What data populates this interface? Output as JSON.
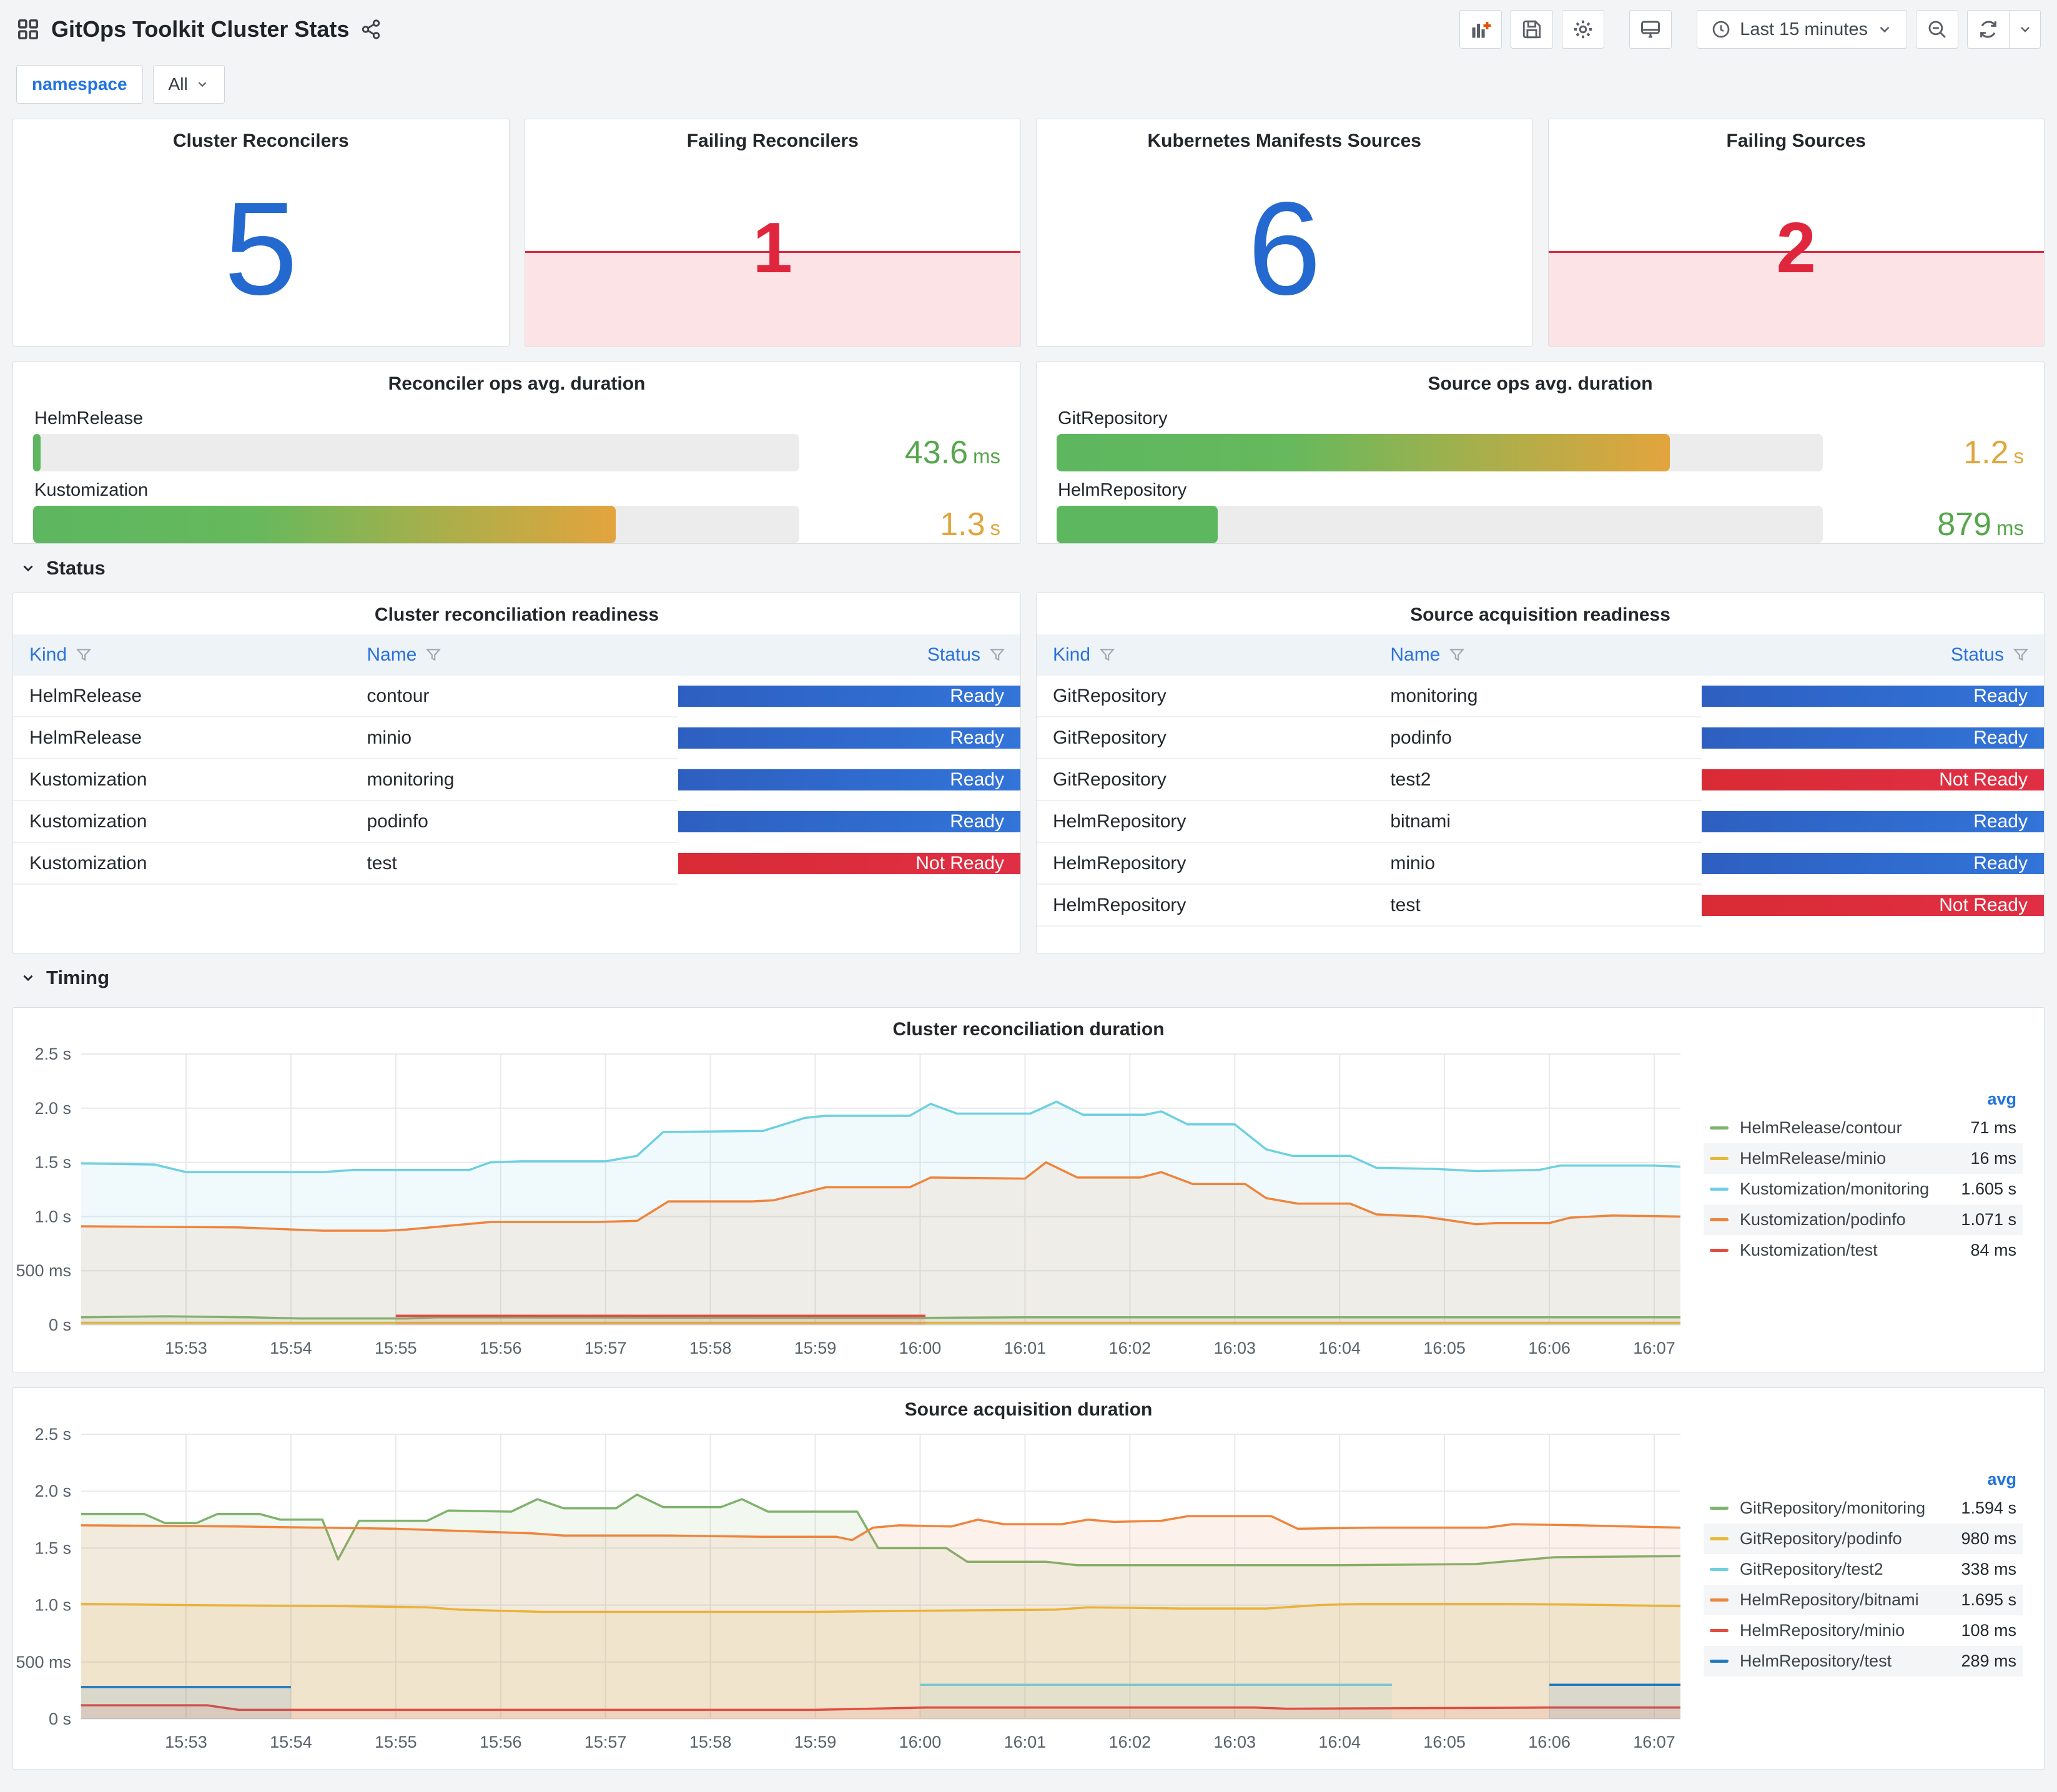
{
  "header": {
    "title": "GitOps Toolkit Cluster Stats",
    "toolbar": {
      "time_range": "Last 15 minutes",
      "accent_plus_color": "#e55400"
    }
  },
  "variables": {
    "label": "namespace",
    "value": "All"
  },
  "colors": {
    "stat_blue": "#2469cf",
    "stat_red": "#e0263c",
    "stat_red_fill": "rgba(224,38,60,0.13)",
    "ready_blue": "#3274d9",
    "notready_red": "#e02f44",
    "value_green": "#56a64b",
    "value_orange": "#e0a63c"
  },
  "stats": [
    {
      "title": "Cluster Reconcilers",
      "value": "5",
      "alert": false
    },
    {
      "title": "Failing Reconcilers",
      "value": "1",
      "alert": true
    },
    {
      "title": "Kubernetes Manifests Sources",
      "value": "6",
      "alert": false
    },
    {
      "title": "Failing Sources",
      "value": "2",
      "alert": true
    }
  ],
  "gauges": [
    {
      "title": "Reconciler ops avg. duration",
      "rows": [
        {
          "label": "HelmRelease",
          "value": "43.6",
          "unit": "ms",
          "pct": 1,
          "fill": "green",
          "value_color": "#56a64b"
        },
        {
          "label": "Kustomization",
          "value": "1.3",
          "unit": "s",
          "pct": 76,
          "fill": "gradient",
          "value_color": "#e0a63c"
        }
      ]
    },
    {
      "title": "Source ops avg. duration",
      "rows": [
        {
          "label": "GitRepository",
          "value": "1.2",
          "unit": "s",
          "pct": 80,
          "fill": "gradient",
          "value_color": "#e0a63c"
        },
        {
          "label": "HelmRepository",
          "value": "879",
          "unit": "ms",
          "pct": 21,
          "fill": "green",
          "value_color": "#56a64b"
        }
      ]
    }
  ],
  "sections": {
    "status": "Status",
    "timing": "Timing"
  },
  "tables": [
    {
      "title": "Cluster reconciliation readiness",
      "columns": [
        "Kind",
        "Name",
        "Status"
      ],
      "rows": [
        [
          "HelmRelease",
          "contour",
          "Ready"
        ],
        [
          "HelmRelease",
          "minio",
          "Ready"
        ],
        [
          "Kustomization",
          "monitoring",
          "Ready"
        ],
        [
          "Kustomization",
          "podinfo",
          "Ready"
        ],
        [
          "Kustomization",
          "test",
          "Not Ready"
        ]
      ]
    },
    {
      "title": "Source acquisition readiness",
      "columns": [
        "Kind",
        "Name",
        "Status"
      ],
      "rows": [
        [
          "GitRepository",
          "monitoring",
          "Ready"
        ],
        [
          "GitRepository",
          "podinfo",
          "Ready"
        ],
        [
          "GitRepository",
          "test2",
          "Not Ready"
        ],
        [
          "HelmRepository",
          "bitnami",
          "Ready"
        ],
        [
          "HelmRepository",
          "minio",
          "Ready"
        ],
        [
          "HelmRepository",
          "test",
          "Not Ready"
        ]
      ]
    }
  ],
  "chart_data": [
    {
      "type": "area",
      "title": "Cluster reconciliation duration",
      "legend_header": "avg",
      "legend_position": "right",
      "grid": true,
      "ylim": [
        0,
        2.5
      ],
      "y_ticks": [
        "0 s",
        "500 ms",
        "1.0 s",
        "1.5 s",
        "2.0 s",
        "2.5 s"
      ],
      "x_ticks": [
        "15:53",
        "15:54",
        "15:55",
        "15:56",
        "15:57",
        "15:58",
        "15:59",
        "16:00",
        "16:01",
        "16:02",
        "16:03",
        "16:04",
        "16:05",
        "16:06",
        "16:07"
      ],
      "x_start": "15:52",
      "x_span_minutes": 15.25,
      "series": [
        {
          "name": "HelmRelease/contour",
          "color": "#7EB26D",
          "avg": "71 ms",
          "segments": [
            [
              [
                0,
                0.07
              ],
              [
                0.8,
                0.08
              ],
              [
                1.6,
                0.07
              ],
              [
                2.1,
                0.06
              ],
              [
                3.1,
                0.06
              ],
              [
                3.4,
                0.07
              ],
              [
                8.0,
                0.065
              ],
              [
                9.0,
                0.07
              ],
              [
                15.25,
                0.07
              ]
            ]
          ]
        },
        {
          "name": "HelmRelease/minio",
          "color": "#EAB839",
          "avg": "16 ms",
          "segments": [
            [
              [
                0,
                0.02
              ],
              [
                15.25,
                0.02
              ]
            ]
          ]
        },
        {
          "name": "Kustomization/monitoring",
          "color": "#6ED0E0",
          "avg": "1.605 s",
          "segments": [
            [
              [
                0,
                1.49
              ],
              [
                0.7,
                1.48
              ],
              [
                1.0,
                1.41
              ],
              [
                2.3,
                1.41
              ],
              [
                2.6,
                1.43
              ],
              [
                3.7,
                1.43
              ],
              [
                3.9,
                1.5
              ],
              [
                4.2,
                1.51
              ],
              [
                5.0,
                1.51
              ],
              [
                5.3,
                1.56
              ],
              [
                5.55,
                1.78
              ],
              [
                6.5,
                1.79
              ],
              [
                6.9,
                1.91
              ],
              [
                7.1,
                1.93
              ],
              [
                7.9,
                1.93
              ],
              [
                8.1,
                2.04
              ],
              [
                8.35,
                1.95
              ],
              [
                9.05,
                1.95
              ],
              [
                9.3,
                2.06
              ],
              [
                9.55,
                1.94
              ],
              [
                10.15,
                1.94
              ],
              [
                10.3,
                1.97
              ],
              [
                10.55,
                1.85
              ],
              [
                11.0,
                1.85
              ],
              [
                11.3,
                1.62
              ],
              [
                11.55,
                1.56
              ],
              [
                12.1,
                1.56
              ],
              [
                12.35,
                1.45
              ],
              [
                12.9,
                1.44
              ],
              [
                13.3,
                1.42
              ],
              [
                13.9,
                1.43
              ],
              [
                14.1,
                1.47
              ],
              [
                15.0,
                1.47
              ],
              [
                15.25,
                1.46
              ]
            ]
          ]
        },
        {
          "name": "Kustomization/podinfo",
          "color": "#EF843C",
          "avg": "1.071 s",
          "segments": [
            [
              [
                0,
                0.91
              ],
              [
                1.5,
                0.9
              ],
              [
                2.3,
                0.87
              ],
              [
                2.9,
                0.87
              ],
              [
                3.1,
                0.88
              ],
              [
                3.9,
                0.95
              ],
              [
                4.9,
                0.95
              ],
              [
                5.3,
                0.96
              ],
              [
                5.6,
                1.14
              ],
              [
                6.4,
                1.14
              ],
              [
                6.6,
                1.15
              ],
              [
                7.1,
                1.27
              ],
              [
                7.9,
                1.27
              ],
              [
                8.1,
                1.36
              ],
              [
                9.0,
                1.35
              ],
              [
                9.2,
                1.5
              ],
              [
                9.5,
                1.36
              ],
              [
                10.1,
                1.36
              ],
              [
                10.3,
                1.41
              ],
              [
                10.6,
                1.3
              ],
              [
                11.1,
                1.3
              ],
              [
                11.3,
                1.17
              ],
              [
                11.6,
                1.12
              ],
              [
                12.1,
                1.12
              ],
              [
                12.35,
                1.02
              ],
              [
                12.8,
                1.0
              ],
              [
                13.3,
                0.93
              ],
              [
                13.5,
                0.94
              ],
              [
                14.0,
                0.94
              ],
              [
                14.2,
                0.99
              ],
              [
                14.6,
                1.01
              ],
              [
                15.25,
                1.0
              ]
            ]
          ]
        },
        {
          "name": "Kustomization/test",
          "color": "#E24D42",
          "avg": "84 ms",
          "segments": [
            [
              [
                3.0,
                0.085
              ],
              [
                8.05,
                0.085
              ]
            ]
          ]
        }
      ]
    },
    {
      "type": "area",
      "title": "Source acquisition duration",
      "legend_header": "avg",
      "legend_position": "right",
      "grid": true,
      "ylim": [
        0,
        2.5
      ],
      "y_ticks": [
        "0 s",
        "500 ms",
        "1.0 s",
        "1.5 s",
        "2.0 s",
        "2.5 s"
      ],
      "x_ticks": [
        "15:53",
        "15:54",
        "15:55",
        "15:56",
        "15:57",
        "15:58",
        "15:59",
        "16:00",
        "16:01",
        "16:02",
        "16:03",
        "16:04",
        "16:05",
        "16:06",
        "16:07"
      ],
      "x_start": "15:52",
      "x_span_minutes": 15.25,
      "series": [
        {
          "name": "GitRepository/monitoring",
          "color": "#7EB26D",
          "avg": "1.594 s",
          "segments": [
            [
              [
                0,
                1.8
              ],
              [
                0.6,
                1.8
              ],
              [
                0.8,
                1.72
              ],
              [
                1.1,
                1.72
              ],
              [
                1.3,
                1.8
              ],
              [
                1.7,
                1.8
              ],
              [
                1.9,
                1.75
              ],
              [
                2.3,
                1.75
              ],
              [
                2.45,
                1.4
              ],
              [
                2.65,
                1.74
              ],
              [
                3.3,
                1.74
              ],
              [
                3.5,
                1.83
              ],
              [
                4.1,
                1.82
              ],
              [
                4.35,
                1.93
              ],
              [
                4.6,
                1.85
              ],
              [
                5.1,
                1.85
              ],
              [
                5.3,
                1.97
              ],
              [
                5.55,
                1.86
              ],
              [
                6.1,
                1.86
              ],
              [
                6.3,
                1.93
              ],
              [
                6.55,
                1.82
              ],
              [
                7.4,
                1.82
              ],
              [
                7.6,
                1.5
              ],
              [
                8.25,
                1.5
              ],
              [
                8.45,
                1.38
              ],
              [
                9.2,
                1.38
              ],
              [
                9.5,
                1.35
              ],
              [
                12.0,
                1.35
              ],
              [
                13.3,
                1.36
              ],
              [
                13.8,
                1.4
              ],
              [
                14.05,
                1.42
              ],
              [
                15.25,
                1.43
              ]
            ]
          ]
        },
        {
          "name": "GitRepository/podinfo",
          "color": "#EAB839",
          "avg": "980 ms",
          "segments": [
            [
              [
                0,
                1.01
              ],
              [
                1.0,
                1.0
              ],
              [
                2.5,
                0.99
              ],
              [
                3.3,
                0.98
              ],
              [
                3.6,
                0.96
              ],
              [
                4.0,
                0.95
              ],
              [
                4.4,
                0.94
              ],
              [
                7.0,
                0.94
              ],
              [
                8.0,
                0.95
              ],
              [
                9.3,
                0.96
              ],
              [
                9.6,
                0.98
              ],
              [
                10.5,
                0.97
              ],
              [
                11.3,
                0.97
              ],
              [
                11.8,
                1.0
              ],
              [
                12.2,
                1.01
              ],
              [
                13.6,
                1.01
              ],
              [
                14.6,
                1.0
              ],
              [
                15.25,
                0.99
              ]
            ]
          ]
        },
        {
          "name": "GitRepository/test2",
          "color": "#6ED0E0",
          "avg": "338 ms",
          "segments": [
            [
              [
                8.0,
                0.3
              ],
              [
                12.5,
                0.3
              ]
            ]
          ]
        },
        {
          "name": "HelmRepository/bitnami",
          "color": "#EF843C",
          "avg": "1.695 s",
          "segments": [
            [
              [
                0,
                1.7
              ],
              [
                1.5,
                1.69
              ],
              [
                3.0,
                1.67
              ],
              [
                4.3,
                1.63
              ],
              [
                4.6,
                1.61
              ],
              [
                5.6,
                1.61
              ],
              [
                6.5,
                1.6
              ],
              [
                7.2,
                1.6
              ],
              [
                7.35,
                1.57
              ],
              [
                7.55,
                1.68
              ],
              [
                7.8,
                1.7
              ],
              [
                8.3,
                1.69
              ],
              [
                8.55,
                1.75
              ],
              [
                8.8,
                1.71
              ],
              [
                9.35,
                1.71
              ],
              [
                9.6,
                1.75
              ],
              [
                9.85,
                1.73
              ],
              [
                10.3,
                1.74
              ],
              [
                10.55,
                1.78
              ],
              [
                11.35,
                1.78
              ],
              [
                11.6,
                1.67
              ],
              [
                12.3,
                1.68
              ],
              [
                13.4,
                1.68
              ],
              [
                13.65,
                1.71
              ],
              [
                14.3,
                1.7
              ],
              [
                15.25,
                1.68
              ]
            ]
          ]
        },
        {
          "name": "HelmRepository/minio",
          "color": "#E24D42",
          "avg": "108 ms",
          "segments": [
            [
              [
                0,
                0.12
              ],
              [
                1.2,
                0.12
              ],
              [
                1.5,
                0.08
              ],
              [
                7.0,
                0.08
              ],
              [
                8.05,
                0.1
              ],
              [
                11.2,
                0.1
              ],
              [
                11.5,
                0.09
              ],
              [
                14.0,
                0.1
              ],
              [
                15.25,
                0.1
              ]
            ]
          ]
        },
        {
          "name": "HelmRepository/test",
          "color": "#1F78C1",
          "avg": "289 ms",
          "segments": [
            [
              [
                0,
                0.28
              ],
              [
                2.0,
                0.28
              ]
            ],
            [
              [
                14.0,
                0.3
              ],
              [
                15.25,
                0.3
              ]
            ]
          ]
        }
      ]
    }
  ]
}
